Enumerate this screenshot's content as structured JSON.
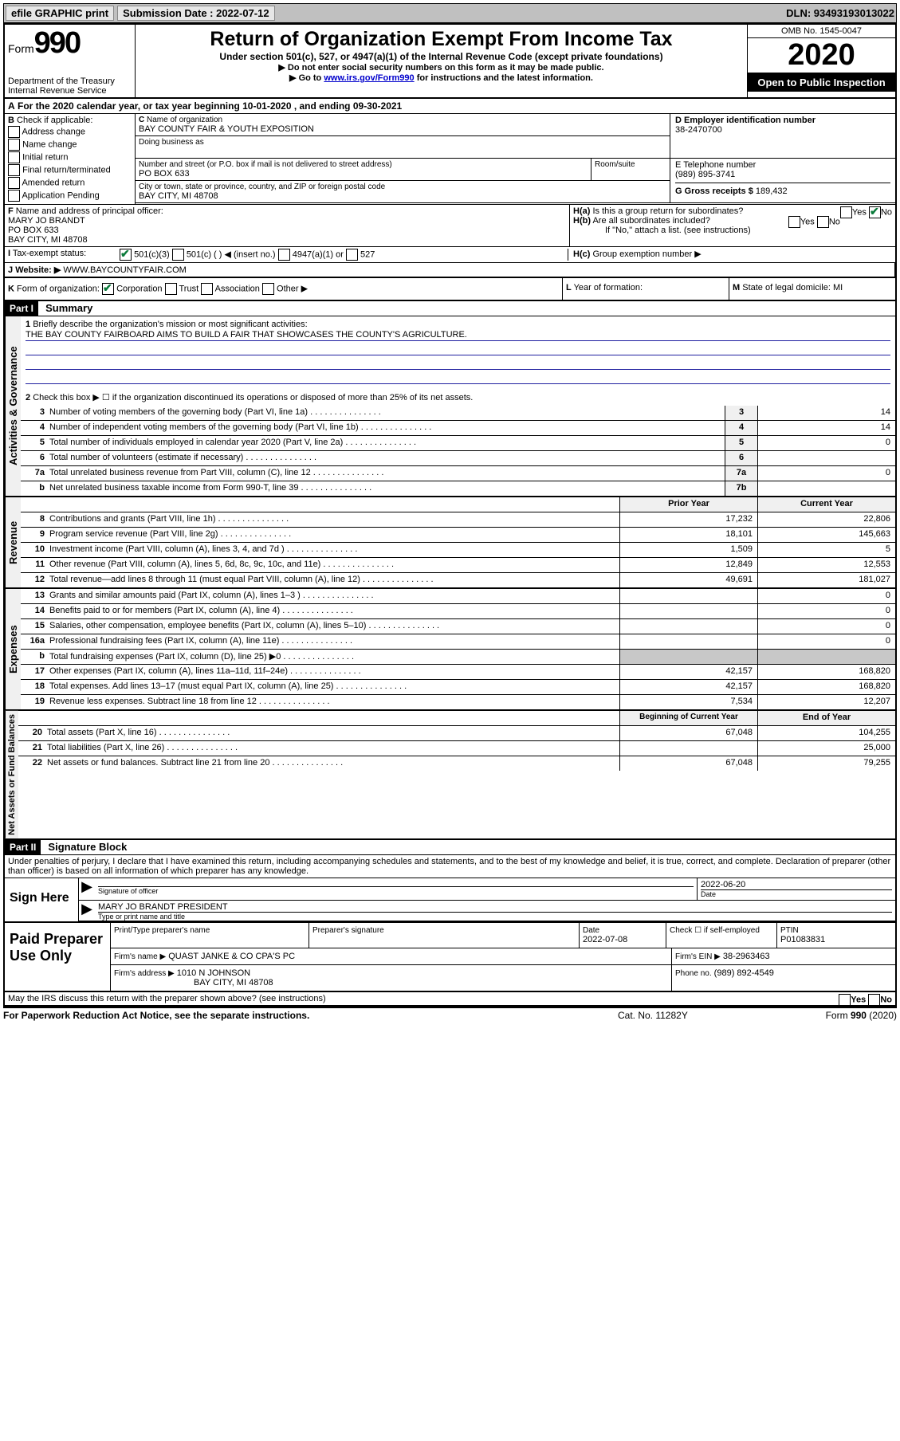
{
  "topbar": {
    "efile": "efile GRAPHIC print",
    "submission_label": "Submission Date : 2022-07-12",
    "dln": "DLN: 93493193013022"
  },
  "header": {
    "form_prefix": "Form",
    "form_num": "990",
    "dept": "Department of the Treasury\nInternal Revenue Service",
    "title": "Return of Organization Exempt From Income Tax",
    "subtitle": "Under section 501(c), 527, or 4947(a)(1) of the Internal Revenue Code (except private foundations)",
    "line1": "▶ Do not enter social security numbers on this form as it may be made public.",
    "line2_pre": "▶ Go to ",
    "line2_link": "www.irs.gov/Form990",
    "line2_post": " for instructions and the latest information.",
    "omb": "OMB No. 1545-0047",
    "year": "2020",
    "inspection": "Open to Public Inspection"
  },
  "A": {
    "text": "For the 2020 calendar year, or tax year beginning 10-01-2020   , and ending 09-30-2021"
  },
  "B": {
    "label": "Check if applicable:",
    "opts": [
      "Address change",
      "Name change",
      "Initial return",
      "Final return/terminated",
      "Amended return",
      "Application Pending"
    ]
  },
  "C": {
    "name_label": "Name of organization",
    "name": "BAY COUNTY FAIR & YOUTH EXPOSITION",
    "dba_label": "Doing business as",
    "addr_label": "Number and street (or P.O. box if mail is not delivered to street address)",
    "room_label": "Room/suite",
    "addr": "PO BOX 633",
    "city_label": "City or town, state or province, country, and ZIP or foreign postal code",
    "city": "BAY CITY, MI  48708"
  },
  "D": {
    "label": "D Employer identification number",
    "value": "38-2470700"
  },
  "E": {
    "label": "E Telephone number",
    "value": "(989) 895-3741"
  },
  "G": {
    "label": "G Gross receipts $",
    "value": "189,432"
  },
  "F": {
    "label": "Name and address of principal officer:",
    "name": "MARY JO BRANDT",
    "addr1": "PO BOX 633",
    "addr2": "BAY CITY, MI  48708"
  },
  "H": {
    "a": "Is this a group return for subordinates?",
    "b": "Are all subordinates included?",
    "note": "If \"No,\" attach a list. (see instructions)",
    "c": "Group exemption number ▶",
    "yes": "Yes",
    "no": "No"
  },
  "I": {
    "label": "Tax-exempt status:",
    "opts": [
      "501(c)(3)",
      "501(c) (  ) ◀ (insert no.)",
      "4947(a)(1) or",
      "527"
    ]
  },
  "J": {
    "label": "Website: ▶",
    "value": "WWW.BAYCOUNTYFAIR.COM"
  },
  "K": {
    "label": "Form of organization:",
    "opts": [
      "Corporation",
      "Trust",
      "Association",
      "Other ▶"
    ]
  },
  "L": {
    "label": "Year of formation:"
  },
  "M": {
    "label": "State of legal domicile:",
    "value": "MI"
  },
  "partI": {
    "tag": "Part I",
    "title": "Summary"
  },
  "gov": {
    "label": "Activities & Governance",
    "l1": "Briefly describe the organization's mission or most significant activities:",
    "mission": "THE BAY COUNTY FAIRBOARD AIMS TO BUILD A FAIR THAT SHOWCASES THE COUNTY'S AGRICULTURE.",
    "l2": "Check this box ▶ ☐  if the organization discontinued its operations or disposed of more than 25% of its net assets.",
    "lines": [
      {
        "n": "3",
        "t": "Number of voting members of the governing body (Part VI, line 1a)",
        "b": "3",
        "v": "14"
      },
      {
        "n": "4",
        "t": "Number of independent voting members of the governing body (Part VI, line 1b)",
        "b": "4",
        "v": "14"
      },
      {
        "n": "5",
        "t": "Total number of individuals employed in calendar year 2020 (Part V, line 2a)",
        "b": "5",
        "v": "0"
      },
      {
        "n": "6",
        "t": "Total number of volunteers (estimate if necessary)",
        "b": "6",
        "v": ""
      },
      {
        "n": "7a",
        "t": "Total unrelated business revenue from Part VIII, column (C), line 12",
        "b": "7a",
        "v": "0"
      },
      {
        "n": "b",
        "t": "Net unrelated business taxable income from Form 990-T, line 39",
        "b": "7b",
        "v": ""
      }
    ]
  },
  "rev": {
    "label": "Revenue",
    "hdr_prior": "Prior Year",
    "hdr_curr": "Current Year",
    "lines": [
      {
        "n": "8",
        "t": "Contributions and grants (Part VIII, line 1h)",
        "p": "17,232",
        "c": "22,806"
      },
      {
        "n": "9",
        "t": "Program service revenue (Part VIII, line 2g)",
        "p": "18,101",
        "c": "145,663"
      },
      {
        "n": "10",
        "t": "Investment income (Part VIII, column (A), lines 3, 4, and 7d )",
        "p": "1,509",
        "c": "5"
      },
      {
        "n": "11",
        "t": "Other revenue (Part VIII, column (A), lines 5, 6d, 8c, 9c, 10c, and 11e)",
        "p": "12,849",
        "c": "12,553"
      },
      {
        "n": "12",
        "t": "Total revenue—add lines 8 through 11 (must equal Part VIII, column (A), line 12)",
        "p": "49,691",
        "c": "181,027"
      }
    ]
  },
  "exp": {
    "label": "Expenses",
    "lines": [
      {
        "n": "13",
        "t": "Grants and similar amounts paid (Part IX, column (A), lines 1–3 )",
        "p": "",
        "c": "0"
      },
      {
        "n": "14",
        "t": "Benefits paid to or for members (Part IX, column (A), line 4)",
        "p": "",
        "c": "0"
      },
      {
        "n": "15",
        "t": "Salaries, other compensation, employee benefits (Part IX, column (A), lines 5–10)",
        "p": "",
        "c": "0"
      },
      {
        "n": "16a",
        "t": "Professional fundraising fees (Part IX, column (A), line 11e)",
        "p": "",
        "c": "0"
      },
      {
        "n": "b",
        "t": "Total fundraising expenses (Part IX, column (D), line 25) ▶0",
        "p": "shade",
        "c": "shade"
      },
      {
        "n": "17",
        "t": "Other expenses (Part IX, column (A), lines 11a–11d, 11f–24e)",
        "p": "42,157",
        "c": "168,820"
      },
      {
        "n": "18",
        "t": "Total expenses. Add lines 13–17 (must equal Part IX, column (A), line 25)",
        "p": "42,157",
        "c": "168,820"
      },
      {
        "n": "19",
        "t": "Revenue less expenses. Subtract line 18 from line 12",
        "p": "7,534",
        "c": "12,207"
      }
    ]
  },
  "net": {
    "label": "Net Assets or Fund Balances",
    "hdr_beg": "Beginning of Current Year",
    "hdr_end": "End of Year",
    "lines": [
      {
        "n": "20",
        "t": "Total assets (Part X, line 16)",
        "p": "67,048",
        "c": "104,255"
      },
      {
        "n": "21",
        "t": "Total liabilities (Part X, line 26)",
        "p": "",
        "c": "25,000"
      },
      {
        "n": "22",
        "t": "Net assets or fund balances. Subtract line 21 from line 20",
        "p": "67,048",
        "c": "79,255"
      }
    ]
  },
  "partII": {
    "tag": "Part II",
    "title": "Signature Block"
  },
  "penalty": "Under penalties of perjury, I declare that I have examined this return, including accompanying schedules and statements, and to the best of my knowledge and belief, it is true, correct, and complete. Declaration of preparer (other than officer) is based on all information of which preparer has any knowledge.",
  "sign": {
    "here": "Sign Here",
    "sig_of_officer": "Signature of officer",
    "date_label": "Date",
    "date": "2022-06-20",
    "name": "MARY JO BRANDT  PRESIDENT",
    "type_label": "Type or print name and title"
  },
  "paid": {
    "label": "Paid Preparer Use Only",
    "print_label": "Print/Type preparer's name",
    "sig_label": "Preparer's signature",
    "date_label": "Date",
    "date": "2022-07-08",
    "check_label": "Check ☐ if self-employed",
    "ptin_label": "PTIN",
    "ptin": "P01083831",
    "firm_name_label": "Firm's name    ▶",
    "firm_name": "QUAST JANKE & CO CPA'S PC",
    "firm_ein_label": "Firm's EIN ▶",
    "firm_ein": "38-2963463",
    "firm_addr_label": "Firm's address ▶",
    "firm_addr1": "1010 N JOHNSON",
    "firm_addr2": "BAY CITY, MI  48708",
    "phone_label": "Phone no.",
    "phone": "(989) 892-4549"
  },
  "discuss": {
    "q": "May the IRS discuss this return with the preparer shown above? (see instructions)",
    "yes": "Yes",
    "no": "No"
  },
  "footer": {
    "pra": "For Paperwork Reduction Act Notice, see the separate instructions.",
    "cat": "Cat. No. 11282Y",
    "form": "Form 990 (2020)"
  }
}
